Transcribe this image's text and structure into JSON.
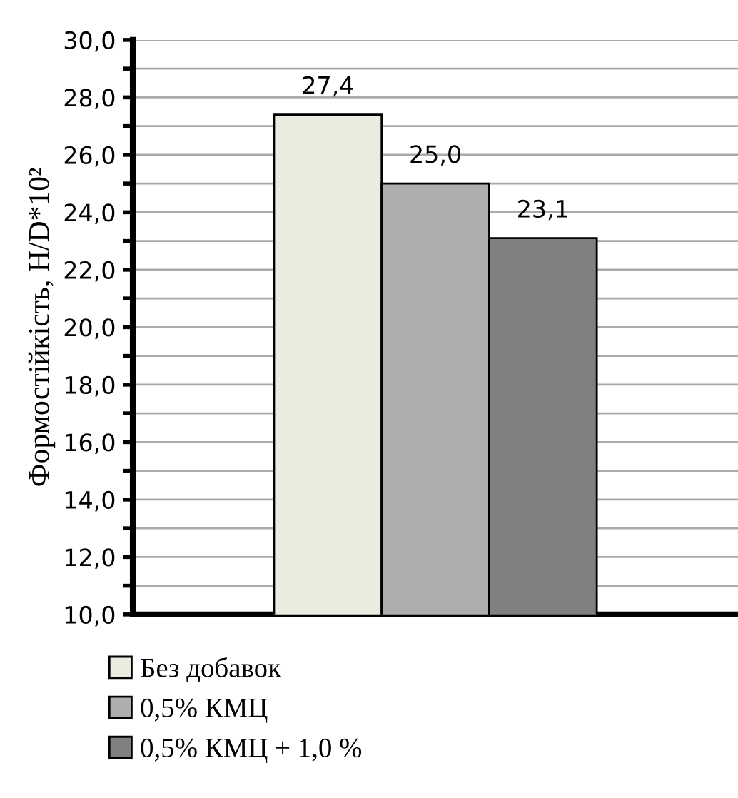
{
  "chart_data": {
    "type": "bar",
    "categories": [
      null
    ],
    "ylabel": "Формостійкість, Н/D*10²",
    "series": [
      {
        "name": "Без добавок",
        "color": "#ebebe0",
        "values": [
          27.4
        ],
        "value_labels": [
          "27,4"
        ]
      },
      {
        "name": "0,5% КМЦ",
        "color": "#aeaeae",
        "values": [
          25.0
        ],
        "value_labels": [
          "25,0"
        ]
      },
      {
        "name": "0,5% КМЦ + 1,0 %",
        "color": "#808080",
        "values": [
          23.1
        ],
        "value_labels": [
          "23,1"
        ]
      }
    ],
    "ylim": [
      10,
      30
    ],
    "yticks": [
      {
        "value": 10,
        "label": "10,0"
      },
      {
        "value": 11,
        "label": null
      },
      {
        "value": 12,
        "label": "12,0"
      },
      {
        "value": 13,
        "label": null
      },
      {
        "value": 14,
        "label": "14,0"
      },
      {
        "value": 15,
        "label": null
      },
      {
        "value": 16,
        "label": "16,0"
      },
      {
        "value": 17,
        "label": null
      },
      {
        "value": 18,
        "label": "18,0"
      },
      {
        "value": 19,
        "label": null
      },
      {
        "value": 20,
        "label": "20,0"
      },
      {
        "value": 21,
        "label": null
      },
      {
        "value": 22,
        "label": "22,0"
      },
      {
        "value": 23,
        "label": null
      },
      {
        "value": 24,
        "label": "24,0"
      },
      {
        "value": 25,
        "label": null
      },
      {
        "value": 26,
        "label": "26,0"
      },
      {
        "value": 27,
        "label": null
      },
      {
        "value": 28,
        "label": "28,0"
      },
      {
        "value": 29,
        "label": null
      },
      {
        "value": 30,
        "label": "30,0"
      }
    ],
    "grid": "y",
    "legend": "bottom"
  }
}
